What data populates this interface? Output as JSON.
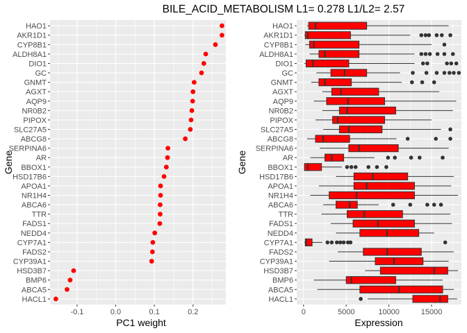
{
  "title": "BILE_ACID_METABOLISM L1= 0.278 L1/L2= 2.57",
  "colors": {
    "panel_bg": "#ebebeb",
    "grid_major": "#ffffff",
    "point": "#ff0000",
    "box_fill": "#ff0000",
    "box_line": "#333333",
    "outlier": "#333333"
  },
  "chart_data": [
    {
      "type": "scatter",
      "xlabel": "PC1 weight",
      "ylabel": "Gene",
      "xlim": [
        -0.17,
        0.285
      ],
      "x_ticks": [
        -0.1,
        0.0,
        0.1,
        0.2
      ],
      "x_tick_labels": [
        "-0.1",
        "0.0",
        "0.1",
        "0.2"
      ],
      "grid": true,
      "categories": [
        "HAO1",
        "AKR1D1",
        "CYP8B1",
        "ALDH8A1",
        "DIO1",
        "GC",
        "GNMT",
        "AGXT",
        "AQP9",
        "NR0B2",
        "PIPOX",
        "SLC27A5",
        "ABCG8",
        "SERPINA6",
        "AR",
        "BBOX1",
        "HSD17B6",
        "APOA1",
        "NR1H4",
        "ABCA6",
        "TTR",
        "FADS1",
        "NEDD4",
        "CYP7A1",
        "FADS2",
        "CYP39A1",
        "HSD3B7",
        "BMP6",
        "ABCA5",
        "HACL1"
      ],
      "values": [
        0.275,
        0.275,
        0.258,
        0.233,
        0.228,
        0.222,
        0.203,
        0.2,
        0.199,
        0.197,
        0.195,
        0.193,
        0.18,
        0.135,
        0.134,
        0.131,
        0.125,
        0.116,
        0.116,
        0.115,
        0.115,
        0.114,
        0.101,
        0.096,
        0.095,
        0.093,
        -0.109,
        -0.118,
        -0.126,
        -0.155
      ]
    },
    {
      "type": "box",
      "xlabel": "Expression",
      "ylabel": "Gene",
      "xlim": [
        -800,
        18500
      ],
      "x_ticks": [
        0,
        5000,
        10000,
        15000
      ],
      "x_tick_labels": [
        "0",
        "5000",
        "10000",
        "15000"
      ],
      "grid": true,
      "categories": [
        "HAO1",
        "AKR1D1",
        "CYP8B1",
        "ALDH8A1",
        "DIO1",
        "GC",
        "GNMT",
        "AGXT",
        "AQP9",
        "NR0B2",
        "PIPOX",
        "SLC27A5",
        "ABCG8",
        "SERPINA6",
        "AR",
        "BBOX1",
        "HSD17B6",
        "APOA1",
        "NR1H4",
        "ABCA6",
        "TTR",
        "FADS1",
        "NEDD4",
        "CYP7A1",
        "FADS2",
        "CYP39A1",
        "HSD3B7",
        "BMP6",
        "ABCA5",
        "HACL1"
      ],
      "boxes": [
        {
          "gene": "HAO1",
          "min": 400,
          "q1": 600,
          "median": 1400,
          "q3": 7400,
          "max": 17000,
          "outliers": []
        },
        {
          "gene": "AKR1D1",
          "min": 100,
          "q1": 200,
          "median": 500,
          "q3": 5500,
          "max": 12500,
          "outliers": [
            13800,
            14300,
            14700,
            15600,
            16200,
            17200
          ]
        },
        {
          "gene": "CYP8B1",
          "min": 200,
          "q1": 700,
          "median": 1200,
          "q3": 6500,
          "max": 15000,
          "outliers": [
            16500
          ]
        },
        {
          "gene": "ALDH8A1",
          "min": 700,
          "q1": 1800,
          "median": 2500,
          "q3": 6500,
          "max": 13000,
          "outliers": [
            13800,
            14300,
            14800,
            15700,
            16500,
            17500
          ]
        },
        {
          "gene": "DIO1",
          "min": 100,
          "q1": 300,
          "median": 1100,
          "q3": 5300,
          "max": 13000,
          "outliers": [
            14000,
            14500,
            16800,
            17300,
            17900
          ]
        },
        {
          "gene": "GC",
          "min": 1500,
          "q1": 3200,
          "median": 4800,
          "q3": 7400,
          "max": 11300,
          "outliers": [
            12800,
            14400,
            15600,
            16500,
            17100,
            17600,
            18200
          ]
        },
        {
          "gene": "GNMT",
          "min": 900,
          "q1": 1800,
          "median": 2500,
          "q3": 5600,
          "max": 11500,
          "outliers": [
            12700,
            13900,
            15300
          ]
        },
        {
          "gene": "AGXT",
          "min": 2200,
          "q1": 3300,
          "median": 4400,
          "q3": 8800,
          "max": 15900,
          "outliers": []
        },
        {
          "gene": "AQP9",
          "min": 1200,
          "q1": 2700,
          "median": 5200,
          "q3": 9500,
          "max": 17900,
          "outliers": []
        },
        {
          "gene": "NR0B2",
          "min": 2200,
          "q1": 4200,
          "median": 5100,
          "q3": 10800,
          "max": 17500,
          "outliers": []
        },
        {
          "gene": "PIPOX",
          "min": 1400,
          "q1": 3400,
          "median": 4000,
          "q3": 9500,
          "max": 15000,
          "outliers": []
        },
        {
          "gene": "SLC27A5",
          "min": 2300,
          "q1": 4200,
          "median": 5300,
          "q3": 9200,
          "max": 16100,
          "outliers": [
            17200
          ]
        },
        {
          "gene": "ABCG8",
          "min": 400,
          "q1": 1400,
          "median": 2300,
          "q3": 5400,
          "max": 10900,
          "outliers": [
            12200,
            15500,
            17200
          ]
        },
        {
          "gene": "SERPINA6",
          "min": 1900,
          "q1": 5300,
          "median": 6500,
          "q3": 11100,
          "max": 17000,
          "outliers": []
        },
        {
          "gene": "AR",
          "min": 800,
          "q1": 2500,
          "median": 3300,
          "q3": 4700,
          "max": 8300,
          "outliers": [
            9900,
            10700,
            12600,
            13600,
            16300
          ]
        },
        {
          "gene": "BBOX1",
          "min": 100,
          "q1": 100,
          "median": 500,
          "q3": 2100,
          "max": 4500,
          "outliers": [
            5100,
            5600,
            6100,
            7600,
            8600,
            9700
          ]
        },
        {
          "gene": "HSD17B6",
          "min": 3800,
          "q1": 5900,
          "median": 8100,
          "q3": 12200,
          "max": 17600,
          "outliers": []
        },
        {
          "gene": "APOA1",
          "min": 1800,
          "q1": 5900,
          "median": 7400,
          "q3": 13000,
          "max": 17300,
          "outliers": []
        },
        {
          "gene": "NR1H4",
          "min": 800,
          "q1": 3000,
          "median": 6200,
          "q3": 13000,
          "max": 18100,
          "outliers": []
        },
        {
          "gene": "ABCA6",
          "min": 2300,
          "q1": 3800,
          "median": 5400,
          "q3": 6300,
          "max": 8800,
          "outliers": [
            10500,
            12500,
            14500,
            15300,
            16100
          ]
        },
        {
          "gene": "TTR",
          "min": 2100,
          "q1": 5100,
          "median": 7100,
          "q3": 11600,
          "max": 17200,
          "outliers": []
        },
        {
          "gene": "FADS1",
          "min": 3200,
          "q1": 5800,
          "median": 8700,
          "q3": 13000,
          "max": 17400,
          "outliers": []
        },
        {
          "gene": "NEDD4",
          "min": 3800,
          "q1": 6600,
          "median": 9800,
          "q3": 13500,
          "max": 15300,
          "outliers": []
        },
        {
          "gene": "CYP7A1",
          "min": 100,
          "q1": 200,
          "median": 300,
          "q3": 1000,
          "max": 2200,
          "outliers": [
            2800,
            3300,
            3900,
            4300,
            4700,
            5200,
            5500,
            16600
          ]
        },
        {
          "gene": "FADS2",
          "min": 4000,
          "q1": 7000,
          "median": 9800,
          "q3": 13800,
          "max": 17600,
          "outliers": []
        },
        {
          "gene": "CYP39A1",
          "min": 3000,
          "q1": 8400,
          "median": 10600,
          "q3": 14000,
          "max": 17000,
          "outliers": []
        },
        {
          "gene": "HSD3B7",
          "min": 7200,
          "q1": 9000,
          "median": 15300,
          "q3": 16900,
          "max": 18100,
          "outliers": []
        },
        {
          "gene": "BMP6",
          "min": 1200,
          "q1": 5000,
          "median": 5600,
          "q3": 10800,
          "max": 16300,
          "outliers": []
        },
        {
          "gene": "ABCA5",
          "min": 1600,
          "q1": 6600,
          "median": 11200,
          "q3": 16300,
          "max": 17600,
          "outliers": []
        },
        {
          "gene": "HACL1",
          "min": 7500,
          "q1": 12800,
          "median": 16000,
          "q3": 16900,
          "max": 18000,
          "outliers": [
            6700
          ]
        }
      ]
    }
  ]
}
